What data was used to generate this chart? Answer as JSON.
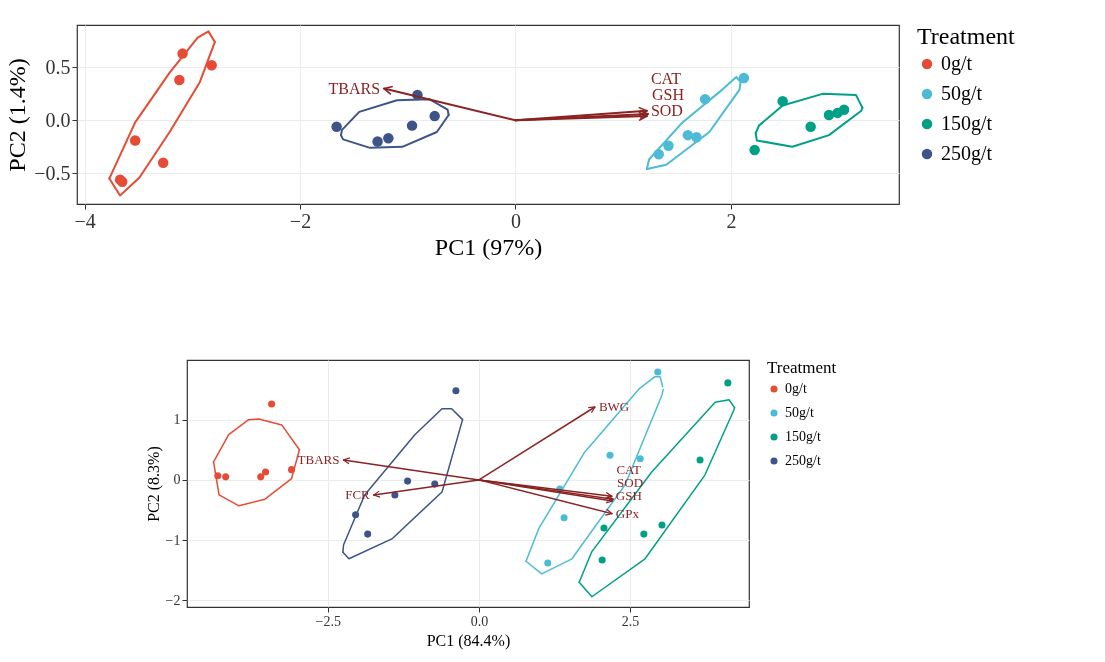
{
  "chart_data": [
    {
      "type": "scatter",
      "xlabel": "PC1 (97%)",
      "ylabel": "PC2 (1.4%)",
      "legend_title": "Treatment",
      "legend": "right",
      "grid": true,
      "marker": "circle",
      "xlim": [
        -4.07,
        3.56
      ],
      "ylim": [
        -0.79,
        0.9
      ],
      "xticks": [
        {
          "value": -4,
          "label": "−4"
        },
        {
          "value": -2,
          "label": "−2"
        },
        {
          "value": 0,
          "label": "0"
        },
        {
          "value": 2,
          "label": "2"
        }
      ],
      "yticks": [
        {
          "value": -0.5,
          "label": "−0.5"
        },
        {
          "value": 0,
          "label": "0.0"
        },
        {
          "value": 0.5,
          "label": "0.5"
        }
      ],
      "series": [
        {
          "name": "0g/t",
          "color": "#e64b35",
          "x": [
            -3.09,
            -2.82,
            -3.12,
            -3.53,
            -3.27,
            -3.65,
            -3.67
          ],
          "values": [
            0.63,
            0.52,
            0.38,
            -0.19,
            -0.4,
            -0.58,
            -0.56
          ]
        },
        {
          "name": "50g/t",
          "color": "#4dbbd5",
          "x": [
            2.12,
            1.76,
            1.68,
            1.6,
            1.42,
            1.33
          ],
          "values": [
            0.4,
            0.2,
            -0.16,
            -0.14,
            -0.24,
            -0.32
          ]
        },
        {
          "name": "150g/t",
          "color": "#00a087",
          "x": [
            2.48,
            3.05,
            2.99,
            2.91,
            2.74,
            2.22
          ],
          "values": [
            0.18,
            0.1,
            0.07,
            0.05,
            -0.06,
            -0.28
          ]
        },
        {
          "name": "250g/t",
          "color": "#3c5488",
          "x": [
            -0.91,
            -0.75,
            -0.96,
            -1.18,
            -1.28,
            -1.66
          ],
          "values": [
            0.24,
            0.04,
            -0.05,
            -0.17,
            -0.2,
            -0.06
          ]
        },
        {
          "type": "line",
          "marker": "none",
          "color": "#e64b35",
          "x": [
            -3.77,
            -3.53,
            -3.21,
            -2.95,
            -2.85,
            -2.79
          ],
          "values": [
            -0.55,
            -0.02,
            0.45,
            0.78,
            0.84,
            0.74
          ]
        },
        {
          "type": "line",
          "marker": "none",
          "color": "#e64b35",
          "x": [
            -3.77,
            -3.67,
            -3.49,
            -3.21,
            -2.93,
            -2.79
          ],
          "values": [
            -0.55,
            -0.71,
            -0.54,
            -0.11,
            0.36,
            0.74
          ]
        },
        {
          "type": "line",
          "marker": "none",
          "color": "#4dbbd5",
          "x": [
            1.22,
            1.24,
            1.55,
            1.92,
            2.05,
            2.09
          ],
          "values": [
            -0.46,
            -0.37,
            -0.02,
            0.29,
            0.41,
            0.36
          ]
        },
        {
          "type": "line",
          "marker": "none",
          "color": "#4dbbd5",
          "x": [
            1.22,
            1.4,
            1.8,
            2.08,
            2.09
          ],
          "values": [
            -0.46,
            -0.42,
            -0.11,
            0.29,
            0.36
          ]
        },
        {
          "type": "line",
          "marker": "none",
          "color": "#00a087",
          "x": [
            2.23,
            2.26,
            2.48,
            2.85,
            3.16,
            3.22
          ],
          "values": [
            -0.12,
            -0.05,
            0.14,
            0.25,
            0.24,
            0.12
          ]
        },
        {
          "type": "line",
          "marker": "none",
          "color": "#00a087",
          "x": [
            2.23,
            2.24,
            2.57,
            2.91,
            3.21,
            3.22
          ],
          "values": [
            -0.12,
            -0.19,
            -0.25,
            -0.14,
            0.09,
            0.12
          ]
        },
        {
          "type": "line",
          "marker": "none",
          "color": "#3c5488",
          "x": [
            -1.62,
            -1.61,
            -1.45,
            -1.1,
            -0.8,
            -0.63,
            -0.62
          ],
          "values": [
            -0.14,
            -0.09,
            0.08,
            0.19,
            0.2,
            0.1,
            0.05
          ]
        },
        {
          "type": "line",
          "marker": "none",
          "color": "#3c5488",
          "x": [
            -1.62,
            -1.6,
            -1.35,
            -1.05,
            -0.73,
            -0.62
          ],
          "values": [
            -0.14,
            -0.18,
            -0.26,
            -0.25,
            -0.11,
            0.05
          ]
        },
        {
          "type": "line",
          "marker": "none",
          "name": "TBARS",
          "color": "#8b2323",
          "x": [
            0,
            -1.22
          ],
          "values": [
            0,
            0.3
          ]
        },
        {
          "type": "line",
          "marker": "none",
          "name": "SOD",
          "color": "#8b2323",
          "x": [
            0,
            1.22
          ],
          "values": [
            0,
            0.09
          ]
        },
        {
          "type": "line",
          "marker": "none",
          "name": "GSH",
          "color": "#8b2323",
          "x": [
            0,
            1.23
          ],
          "values": [
            0,
            0.06
          ]
        },
        {
          "type": "line",
          "marker": "none",
          "name": "CAT",
          "color": "#8b2323",
          "x": [
            0,
            1.22
          ],
          "values": [
            0,
            0.04
          ]
        }
      ]
    },
    {
      "type": "scatter",
      "xlabel": "PC1 (84.4%)",
      "ylabel": "PC2 (8.3%)",
      "legend_title": "Treatment",
      "legend": "right",
      "grid": true,
      "marker": "circle",
      "xlim": [
        -4.83,
        4.47
      ],
      "ylim": [
        -2.11,
        1.99
      ],
      "xticks": [
        {
          "value": -2.5,
          "label": "−2.5"
        },
        {
          "value": 0,
          "label": "0.0"
        },
        {
          "value": 2.5,
          "label": "2.5"
        }
      ],
      "yticks": [
        {
          "value": -2,
          "label": "−2"
        },
        {
          "value": -1,
          "label": "−1"
        },
        {
          "value": 0,
          "label": "0"
        },
        {
          "value": 1,
          "label": "1"
        }
      ],
      "series": [
        {
          "name": "0g/t",
          "color": "#e64b35",
          "x": [
            -3.43,
            -4.32,
            -4.19,
            -3.61,
            -3.53,
            -3.1
          ],
          "values": [
            1.26,
            0.07,
            0.05,
            0.05,
            0.13,
            0.17
          ]
        },
        {
          "name": "50g/t",
          "color": "#4dbbd5",
          "x": [
            2.96,
            2.17,
            2.67,
            1.34,
            1.41,
            1.14
          ],
          "values": [
            1.79,
            0.41,
            0.35,
            -0.15,
            -0.63,
            -1.38
          ]
        },
        {
          "name": "150g/t",
          "color": "#00a087",
          "x": [
            4.12,
            3.66,
            3.03,
            2.73,
            2.07,
            2.04
          ],
          "values": [
            1.61,
            0.33,
            -0.75,
            -0.9,
            -0.8,
            -1.33
          ]
        },
        {
          "name": "250g/t",
          "color": "#3c5488",
          "x": [
            -0.38,
            -0.73,
            -1.18,
            -1.39,
            -2.04,
            -1.84
          ],
          "values": [
            1.48,
            -0.07,
            -0.02,
            -0.25,
            -0.58,
            -0.9
          ]
        },
        {
          "type": "line",
          "marker": "none",
          "color": "#e64b35",
          "x": [
            -4.39,
            -4.14,
            -3.81,
            -3.64,
            -3.26,
            -2.97
          ],
          "values": [
            0.3,
            0.75,
            1.0,
            1.01,
            0.91,
            0.5
          ]
        },
        {
          "type": "line",
          "marker": "none",
          "color": "#e64b35",
          "x": [
            -4.39,
            -4.3,
            -3.97,
            -3.54,
            -3.1,
            -2.97
          ],
          "values": [
            0.3,
            -0.25,
            -0.43,
            -0.32,
            0.02,
            0.5
          ]
        },
        {
          "type": "line",
          "marker": "none",
          "color": "#4dbbd5",
          "x": [
            0.78,
            0.99,
            1.75,
            2.65,
            2.91,
            3.0,
            3.04
          ],
          "values": [
            -1.35,
            -0.81,
            0.46,
            1.51,
            1.71,
            1.71,
            1.55
          ]
        },
        {
          "type": "line",
          "marker": "none",
          "color": "#4dbbd5",
          "x": [
            0.78,
            1.04,
            1.54,
            2.42,
            3.03,
            3.05
          ],
          "values": [
            -1.35,
            -1.56,
            -1.31,
            -0.08,
            1.41,
            1.5
          ]
        },
        {
          "type": "line",
          "marker": "none",
          "color": "#00a087",
          "x": [
            1.66,
            1.87,
            2.86,
            3.91,
            4.14,
            4.23
          ],
          "values": [
            -1.7,
            -1.19,
            0.13,
            1.29,
            1.33,
            1.2
          ]
        },
        {
          "type": "line",
          "marker": "none",
          "color": "#00a087",
          "x": [
            1.66,
            1.87,
            2.75,
            3.74,
            4.22,
            4.23
          ],
          "values": [
            -1.7,
            -1.94,
            -1.31,
            0.08,
            1.16,
            1.2
          ]
        },
        {
          "type": "line",
          "marker": "none",
          "color": "#3c5488",
          "x": [
            -2.25,
            -2.24,
            -1.89,
            -1.06,
            -0.61,
            -0.45,
            -0.27
          ],
          "values": [
            -1.2,
            -1.08,
            -0.25,
            0.75,
            1.18,
            1.18,
            1.0
          ]
        },
        {
          "type": "line",
          "marker": "none",
          "color": "#3c5488",
          "x": [
            -2.25,
            -2.15,
            -1.44,
            -0.61,
            -0.27
          ],
          "values": [
            -1.2,
            -1.31,
            -0.98,
            -0.2,
            1.0
          ]
        },
        {
          "type": "line",
          "marker": "none",
          "name": "BWG",
          "color": "#8b2323",
          "x": [
            0,
            1.92
          ],
          "values": [
            0,
            1.21
          ]
        },
        {
          "type": "line",
          "marker": "none",
          "name": "TBARS",
          "color": "#8b2323",
          "x": [
            0,
            -2.24
          ],
          "values": [
            0,
            0.33
          ]
        },
        {
          "type": "line",
          "marker": "none",
          "name": "FCR",
          "color": "#8b2323",
          "x": [
            0,
            -1.74
          ],
          "values": [
            0,
            -0.25
          ]
        },
        {
          "type": "line",
          "marker": "none",
          "name": "GSH",
          "color": "#8b2323",
          "x": [
            0,
            2.2
          ],
          "values": [
            0,
            -0.27
          ]
        },
        {
          "type": "line",
          "marker": "none",
          "name": "SOD",
          "color": "#8b2323",
          "x": [
            0,
            2.22
          ],
          "values": [
            0,
            -0.32
          ]
        },
        {
          "type": "line",
          "marker": "none",
          "name": "CAT",
          "color": "#8b2323",
          "x": [
            0,
            2.21
          ],
          "values": [
            0,
            -0.35
          ]
        },
        {
          "type": "line",
          "marker": "none",
          "name": "GPx",
          "color": "#8b2323",
          "x": [
            0,
            2.2
          ],
          "values": [
            0,
            -0.56
          ]
        }
      ]
    }
  ]
}
